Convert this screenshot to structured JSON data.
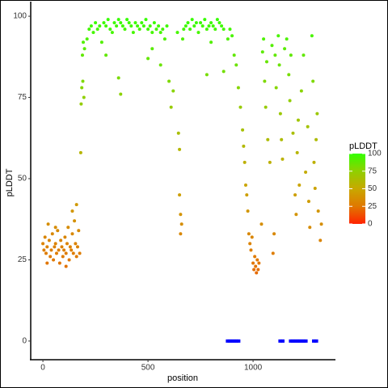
{
  "chart_data": {
    "type": "scatter",
    "x_label": "position",
    "y_label": "pLDDT",
    "x": [
      0,
      5,
      10,
      15,
      20,
      25,
      30,
      35,
      40,
      45,
      50,
      55,
      60,
      65,
      70,
      75,
      80,
      85,
      90,
      95,
      100,
      105,
      110,
      115,
      120,
      125,
      130,
      135,
      140,
      145,
      150,
      155,
      160,
      165,
      170,
      20,
      60,
      110,
      140,
      160,
      175,
      180,
      182,
      185,
      188,
      190,
      192,
      195,
      198,
      210,
      220,
      230,
      240,
      250,
      260,
      270,
      280,
      290,
      300,
      310,
      320,
      330,
      340,
      350,
      360,
      370,
      380,
      390,
      400,
      410,
      420,
      430,
      440,
      450,
      460,
      470,
      480,
      490,
      500,
      510,
      520,
      530,
      540,
      550,
      560,
      570,
      580,
      590,
      370,
      360,
      300,
      500,
      520,
      560,
      600,
      610,
      620,
      640,
      645,
      650,
      650,
      655,
      655,
      660,
      665,
      670,
      680,
      690,
      700,
      710,
      720,
      730,
      740,
      750,
      760,
      770,
      780,
      790,
      800,
      810,
      820,
      830,
      840,
      850,
      860,
      780,
      800,
      860,
      880,
      890,
      900,
      910,
      920,
      930,
      940,
      950,
      955,
      960,
      965,
      970,
      975,
      980,
      985,
      990,
      995,
      1000,
      1004,
      1008,
      1012,
      1016,
      1020,
      1024,
      1028,
      1040,
      1045,
      1050,
      1055,
      1060,
      1065,
      1070,
      1080,
      1090,
      1095,
      1100,
      1105,
      1110,
      1120,
      1125,
      1130,
      1135,
      1140,
      1150,
      1160,
      1170,
      1175,
      1180,
      1190,
      1200,
      1205,
      1210,
      1215,
      1220,
      1230,
      1240,
      1250,
      1260,
      1265,
      1270,
      1280,
      1285,
      1290,
      1295,
      1300,
      1305,
      1310,
      1320,
      1325
    ],
    "values": [
      30,
      28,
      32,
      27,
      29,
      36,
      31,
      26,
      28,
      33,
      25,
      29,
      30,
      27,
      34,
      28,
      24,
      31,
      29,
      26,
      28,
      32,
      27,
      30,
      35,
      25,
      29,
      28,
      33,
      27,
      37,
      30,
      26,
      29,
      34,
      24,
      35,
      23,
      40,
      42,
      27,
      58,
      73,
      78,
      88,
      80,
      92,
      75,
      90,
      93,
      96,
      97,
      95,
      98,
      96,
      97,
      92,
      98,
      97,
      99,
      96,
      95,
      98,
      97,
      99,
      98,
      97,
      96,
      99,
      98,
      97,
      95,
      98,
      97,
      96,
      98,
      97,
      99,
      96,
      97,
      95,
      98,
      96,
      97,
      95,
      96,
      93,
      97,
      76,
      81,
      88,
      87,
      90,
      85,
      80,
      72,
      77,
      95,
      64,
      59,
      45,
      39,
      33,
      36,
      93,
      96,
      97,
      98,
      96,
      99,
      97,
      98,
      95,
      98,
      97,
      99,
      96,
      97,
      98,
      97,
      96,
      99,
      98,
      97,
      96,
      82,
      92,
      83,
      93,
      96,
      94,
      88,
      85,
      78,
      72,
      65,
      60,
      55,
      48,
      45,
      40,
      33,
      30,
      28,
      32,
      24,
      22,
      26,
      23,
      21,
      25,
      22,
      24,
      36,
      89,
      93,
      80,
      72,
      86,
      62,
      55,
      91,
      27,
      33,
      88,
      78,
      94,
      85,
      70,
      62,
      56,
      90,
      93,
      82,
      74,
      88,
      64,
      45,
      39,
      58,
      68,
      48,
      77,
      88,
      52,
      66,
      43,
      35,
      94,
      80,
      55,
      47,
      62,
      70,
      40,
      31,
      36
    ],
    "color_scale": [
      "#ff2200",
      "#e07800",
      "#c8a800",
      "#90d000",
      "#33ff00"
    ],
    "baseline_points": {
      "color": "#0000ff",
      "x": [
        880,
        890,
        900,
        910,
        920,
        930,
        1130,
        1140,
        1180,
        1190,
        1200,
        1210,
        1220,
        1230,
        1240,
        1250,
        1290,
        1300
      ],
      "values": [
        0,
        0,
        0,
        0,
        0,
        0,
        0,
        0,
        0,
        0,
        0,
        0,
        0,
        0,
        0,
        0,
        0,
        0
      ]
    },
    "xlim": [
      -58,
      1392
    ],
    "ylim": [
      -5,
      104.5
    ],
    "xticks": [
      0,
      500,
      1000
    ],
    "yticks": [
      0,
      25,
      50,
      75,
      100
    ],
    "legend": {
      "title": "pLDDT",
      "ticks": [
        0,
        25,
        50,
        75,
        100
      ]
    }
  }
}
